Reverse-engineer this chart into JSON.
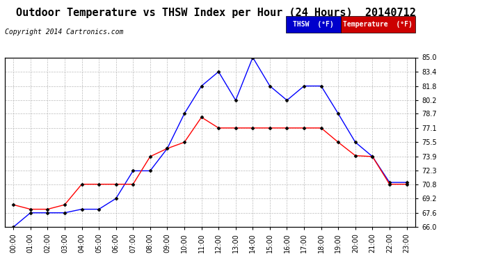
{
  "title": "Outdoor Temperature vs THSW Index per Hour (24 Hours)  20140712",
  "copyright": "Copyright 2014 Cartronics.com",
  "hours": [
    "00:00",
    "01:00",
    "02:00",
    "03:00",
    "04:00",
    "05:00",
    "06:00",
    "07:00",
    "08:00",
    "09:00",
    "10:00",
    "11:00",
    "12:00",
    "13:00",
    "14:00",
    "15:00",
    "16:00",
    "17:00",
    "18:00",
    "19:00",
    "20:00",
    "21:00",
    "22:00",
    "23:00"
  ],
  "thsw": [
    66.0,
    67.6,
    67.6,
    67.6,
    68.0,
    68.0,
    69.2,
    72.3,
    72.3,
    74.8,
    78.7,
    81.8,
    83.4,
    80.2,
    85.0,
    81.8,
    80.2,
    81.8,
    81.8,
    78.7,
    75.5,
    73.9,
    71.0,
    71.0
  ],
  "temperature": [
    68.5,
    68.0,
    68.0,
    68.5,
    70.8,
    70.8,
    70.8,
    70.8,
    73.9,
    74.8,
    75.5,
    78.3,
    77.1,
    77.1,
    77.1,
    77.1,
    77.1,
    77.1,
    77.1,
    75.5,
    74.0,
    73.9,
    70.8,
    70.8
  ],
  "ylim": [
    66.0,
    85.0
  ],
  "yticks": [
    66.0,
    67.6,
    69.2,
    70.8,
    72.3,
    73.9,
    75.5,
    77.1,
    78.7,
    80.2,
    81.8,
    83.4,
    85.0
  ],
  "thsw_color": "#0000ff",
  "temp_color": "#ff0000",
  "bg_color": "#ffffff",
  "plot_bg_color": "#ffffff",
  "grid_color": "#bbbbbb",
  "title_fontsize": 11,
  "copyright_fontsize": 7,
  "tick_fontsize": 7,
  "legend_thsw_bg": "#0000cc",
  "legend_temp_bg": "#cc0000"
}
